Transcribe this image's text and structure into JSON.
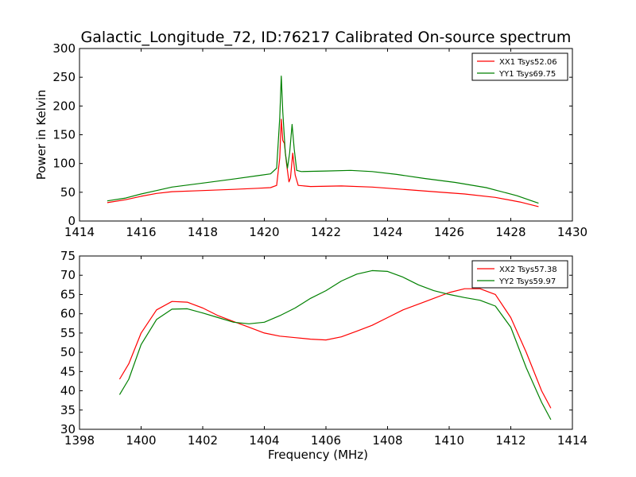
{
  "title": "Galactic_Longitude_72, ID:76217 Calibrated On-source spectrum",
  "colors": {
    "xx": "#ff0000",
    "yy": "#008000"
  },
  "chart_data": [
    {
      "type": "line",
      "ylabel": "Power in Kelvin",
      "xlabel": "",
      "xlim": [
        1414,
        1430
      ],
      "ylim": [
        0,
        300
      ],
      "xticks": [
        1414,
        1416,
        1418,
        1420,
        1422,
        1424,
        1426,
        1428,
        1430
      ],
      "yticks": [
        0,
        50,
        100,
        150,
        200,
        250,
        300
      ],
      "legend_position": "top-right",
      "series": [
        {
          "name": "XX1 Tsys52.06",
          "color": "#ff0000",
          "points": [
            [
              1414.9,
              32
            ],
            [
              1415.5,
              37
            ],
            [
              1416,
              43
            ],
            [
              1416.5,
              48
            ],
            [
              1417,
              51
            ],
            [
              1418,
              53
            ],
            [
              1419,
              55
            ],
            [
              1419.8,
              57
            ],
            [
              1420.2,
              58
            ],
            [
              1420.4,
              62
            ],
            [
              1420.5,
              110
            ],
            [
              1420.55,
              177
            ],
            [
              1420.6,
              140
            ],
            [
              1420.65,
              135
            ],
            [
              1420.72,
              100
            ],
            [
              1420.8,
              68
            ],
            [
              1420.85,
              75
            ],
            [
              1420.92,
              118
            ],
            [
              1421.0,
              80
            ],
            [
              1421.1,
              62
            ],
            [
              1421.5,
              60
            ],
            [
              1422.5,
              61
            ],
            [
              1423.5,
              59
            ],
            [
              1424.5,
              55
            ],
            [
              1425.5,
              51
            ],
            [
              1426.5,
              47
            ],
            [
              1427.5,
              41
            ],
            [
              1428.3,
              33
            ],
            [
              1428.9,
              25
            ]
          ]
        },
        {
          "name": "YY1 Tsys69.75",
          "color": "#008000",
          "points": [
            [
              1414.9,
              35
            ],
            [
              1415.5,
              40
            ],
            [
              1416,
              47
            ],
            [
              1416.5,
              53
            ],
            [
              1417,
              59
            ],
            [
              1418,
              66
            ],
            [
              1419,
              73
            ],
            [
              1419.8,
              79
            ],
            [
              1420.2,
              82
            ],
            [
              1420.4,
              92
            ],
            [
              1420.5,
              180
            ],
            [
              1420.55,
              252
            ],
            [
              1420.6,
              190
            ],
            [
              1420.68,
              118
            ],
            [
              1420.75,
              92
            ],
            [
              1420.82,
              118
            ],
            [
              1420.9,
              168
            ],
            [
              1420.97,
              125
            ],
            [
              1421.05,
              88
            ],
            [
              1421.2,
              86
            ],
            [
              1422,
              87
            ],
            [
              1422.8,
              88
            ],
            [
              1423.5,
              86
            ],
            [
              1424.3,
              81
            ],
            [
              1425.2,
              74
            ],
            [
              1426.2,
              67
            ],
            [
              1427.2,
              58
            ],
            [
              1428.2,
              44
            ],
            [
              1428.9,
              31
            ]
          ]
        }
      ]
    },
    {
      "type": "line",
      "ylabel": "",
      "xlabel": "Frequency (MHz)",
      "xlim": [
        1398,
        1414
      ],
      "ylim": [
        30,
        75
      ],
      "xticks": [
        1398,
        1400,
        1402,
        1404,
        1406,
        1408,
        1410,
        1412,
        1414
      ],
      "yticks": [
        30,
        35,
        40,
        45,
        50,
        55,
        60,
        65,
        70,
        75
      ],
      "legend_position": "top-right",
      "series": [
        {
          "name": "XX2 Tsys57.38",
          "color": "#ff0000",
          "points": [
            [
              1399.3,
              43
            ],
            [
              1399.6,
              47
            ],
            [
              1400,
              55
            ],
            [
              1400.5,
              61
            ],
            [
              1401,
              63.2
            ],
            [
              1401.5,
              63
            ],
            [
              1402,
              61.5
            ],
            [
              1402.5,
              59.5
            ],
            [
              1403,
              58
            ],
            [
              1403.5,
              56.5
            ],
            [
              1404,
              55
            ],
            [
              1404.5,
              54.2
            ],
            [
              1405,
              53.8
            ],
            [
              1405.5,
              53.4
            ],
            [
              1406,
              53.2
            ],
            [
              1406.5,
              54
            ],
            [
              1407,
              55.5
            ],
            [
              1407.5,
              57
            ],
            [
              1408,
              59
            ],
            [
              1408.5,
              61
            ],
            [
              1409,
              62.5
            ],
            [
              1409.5,
              64
            ],
            [
              1410,
              65.5
            ],
            [
              1410.5,
              66.5
            ],
            [
              1411,
              66.5
            ],
            [
              1411.5,
              65
            ],
            [
              1412,
              59
            ],
            [
              1412.5,
              50
            ],
            [
              1413,
              40
            ],
            [
              1413.3,
              35.5
            ]
          ]
        },
        {
          "name": "YY2 Tsys59.97",
          "color": "#008000",
          "points": [
            [
              1399.3,
              39
            ],
            [
              1399.6,
              43
            ],
            [
              1400,
              52
            ],
            [
              1400.5,
              58.5
            ],
            [
              1401,
              61.2
            ],
            [
              1401.5,
              61.3
            ],
            [
              1402,
              60.2
            ],
            [
              1402.5,
              59
            ],
            [
              1403,
              57.8
            ],
            [
              1403.5,
              57.4
            ],
            [
              1404,
              57.8
            ],
            [
              1404.5,
              59.5
            ],
            [
              1405,
              61.5
            ],
            [
              1405.5,
              64
            ],
            [
              1406,
              66
            ],
            [
              1406.5,
              68.5
            ],
            [
              1407,
              70.3
            ],
            [
              1407.5,
              71.2
            ],
            [
              1408,
              71
            ],
            [
              1408.5,
              69.5
            ],
            [
              1409,
              67.5
            ],
            [
              1409.5,
              66
            ],
            [
              1410,
              65
            ],
            [
              1410.5,
              64.2
            ],
            [
              1411,
              63.5
            ],
            [
              1411.5,
              62
            ],
            [
              1412,
              56.5
            ],
            [
              1412.5,
              46
            ],
            [
              1413,
              37
            ],
            [
              1413.3,
              32.5
            ]
          ]
        }
      ]
    }
  ]
}
